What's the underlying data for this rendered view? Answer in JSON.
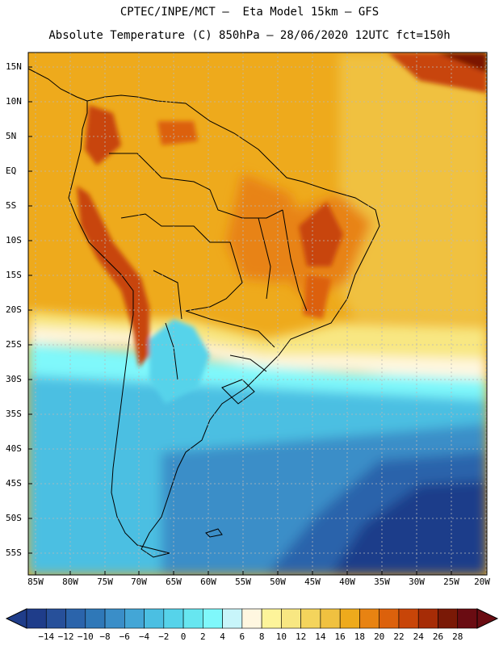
{
  "title_line1": "CPTEC/INPE/MCT –  Eta Model 15km – GFS",
  "title_line2": "Absolute Temperature (C) 850hPa – 28/06/2020 12UTC fct=150h",
  "lat_labels": [
    "15N",
    "10N",
    "5N",
    "EQ",
    "5S",
    "10S",
    "15S",
    "20S",
    "25S",
    "30S",
    "35S",
    "40S",
    "45S",
    "50S",
    "55S"
  ],
  "lon_labels": [
    "85W",
    "80W",
    "75W",
    "70W",
    "65W",
    "60W",
    "55W",
    "50W",
    "45W",
    "40W",
    "35W",
    "30W",
    "25W",
    "20W"
  ],
  "colorbar_labels": [
    "-14",
    "-12",
    "-10",
    "-8",
    "-6",
    "-4",
    "-2",
    "0",
    "2",
    "4",
    "6",
    "8",
    "10",
    "12",
    "14",
    "16",
    "18",
    "20",
    "22",
    "24",
    "26",
    "28"
  ],
  "colorbar_colors": [
    "#1f3d8a",
    "#27509a",
    "#2b64ab",
    "#2f78b8",
    "#3a8ec8",
    "#43a6d6",
    "#4bbfe2",
    "#56d3ea",
    "#67e6f0",
    "#7ff8fb",
    "#c8f5fa",
    "#fff7e0",
    "#fdf49a",
    "#f8e782",
    "#f4d45c",
    "#f0c140",
    "#eeaa1c",
    "#e88312",
    "#dc610c",
    "#c84508",
    "#a62c06",
    "#7a1906",
    "#6a0c12"
  ],
  "temperature_field": {
    "north_tropics": 18,
    "brazil_highlands": 24,
    "andes_peaks": 26,
    "north_atlantic_top_right": 28,
    "subtropical_front": 6,
    "southern_cone": -2,
    "south_atlantic_deep": -12
  }
}
